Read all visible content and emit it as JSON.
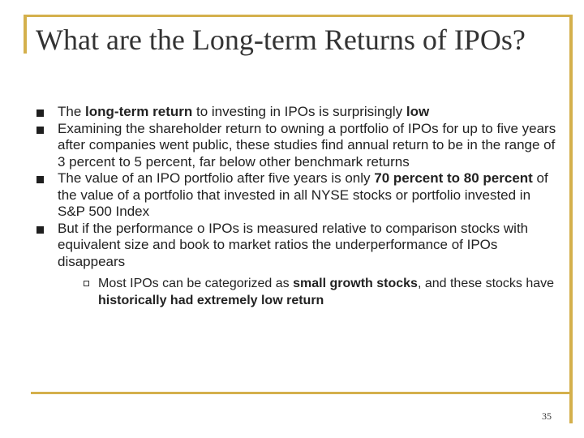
{
  "title": "What are the Long-term Returns of IPOs?",
  "bullets": [
    {
      "t0": "The ",
      "b0": "long-term return",
      "t1": " to investing in IPOs is surprisingly ",
      "b1": "low"
    },
    {
      "text": "Examining the shareholder return to owning a portfolio of IPOs for up to five years after companies went public, these studies find annual return to be in the range of 3 percent to 5 percent, far below other benchmark returns"
    },
    {
      "t0": "The value of an IPO portfolio after five years is only ",
      "b0": "70 percent to 80 percent",
      "t1": " of the value of a portfolio that invested in all NYSE stocks or portfolio invested in S&P 500 Index"
    },
    {
      "text": "But if the performance o IPOs is measured relative to comparison stocks with equivalent size and book to market ratios the underperformance of IPOs disappears",
      "sub": {
        "t0": "Most IPOs can be categorized as ",
        "b0": "small growth stocks",
        "t1": ", and these stocks have ",
        "b1": "historically had extremely low return"
      }
    }
  ],
  "page_number": "35",
  "colors": {
    "frame": "#d4b04c",
    "text": "#222222",
    "title": "#333333"
  },
  "icons": {
    "main_bullet": "filled-square-bullet-icon",
    "sub_bullet": "hollow-square-bullet-icon"
  }
}
